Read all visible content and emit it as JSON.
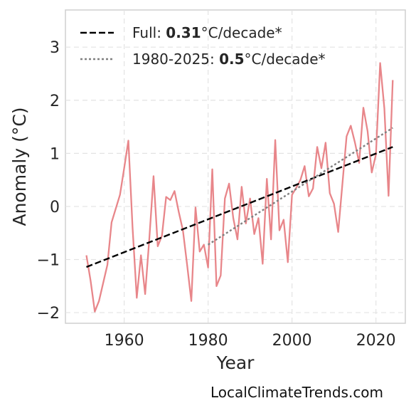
{
  "chart_data": {
    "type": "line",
    "xlabel": "Year",
    "ylabel": "Anomaly (°C)",
    "xlim": [
      1946,
      2027
    ],
    "ylim": [
      -2.2,
      3.7
    ],
    "x_ticks": [
      1960,
      1980,
      2000,
      2020
    ],
    "y_ticks": [
      3,
      2,
      1,
      0,
      -1,
      -2
    ],
    "y_tick_labels": [
      "3",
      "2",
      "1",
      "0",
      "−1",
      "−2"
    ],
    "grid": true,
    "legend_position": "top-left",
    "series": [
      {
        "color": "#e8868a",
        "x": [
          1951,
          1952,
          1953,
          1954,
          1956,
          1957,
          1959,
          1960,
          1961,
          1962,
          1963,
          1964,
          1965,
          1966,
          1967,
          1968,
          1969,
          1970,
          1971,
          1972,
          1973,
          1974,
          1975,
          1976,
          1977,
          1978,
          1979,
          1980,
          1981,
          1982,
          1983,
          1984,
          1985,
          1986,
          1987,
          1988,
          1989,
          1990,
          1991,
          1992,
          1993,
          1994,
          1995,
          1996,
          1997,
          1998,
          1999,
          2000,
          2001,
          2002,
          2003,
          2004,
          2005,
          2006,
          2007,
          2008,
          2009,
          2010,
          2011,
          2012,
          2013,
          2014,
          2015,
          2016,
          2017,
          2018,
          2019,
          2020,
          2021,
          2022,
          2023,
          2024
        ],
        "y": [
          -0.92,
          -1.4,
          -1.98,
          -1.78,
          -1.1,
          -0.3,
          0.22,
          0.72,
          1.24,
          -0.4,
          -1.72,
          -0.92,
          -1.65,
          -0.6,
          0.57,
          -0.75,
          -0.55,
          0.18,
          0.12,
          0.29,
          -0.1,
          -0.45,
          -1.1,
          -1.78,
          -0.02,
          -0.85,
          -0.72,
          -1.15,
          0.7,
          -1.5,
          -1.3,
          0.15,
          0.43,
          -0.22,
          -0.62,
          0.37,
          -0.32,
          0.15,
          -0.52,
          -0.22,
          -1.08,
          0.52,
          -0.62,
          1.25,
          -0.45,
          -0.25,
          -1.05,
          0.22,
          0.35,
          0.5,
          0.76,
          0.19,
          0.34,
          1.12,
          0.72,
          1.2,
          0.25,
          0.05,
          -0.48,
          0.42,
          1.32,
          1.52,
          1.2,
          0.82,
          1.86,
          1.42,
          0.64,
          0.98,
          2.7,
          1.85,
          0.2,
          2.38
        ]
      },
      {
        "name": "Full: 0.31°C/decade*",
        "style": "dashed",
        "color": "#000000",
        "x": [
          1951,
          2024
        ],
        "y": [
          -1.14,
          1.12
        ]
      },
      {
        "name": "1980-2025: 0.5°C/decade*",
        "style": "dotted",
        "color": "#808080",
        "x": [
          1980,
          2024
        ],
        "y": [
          -0.72,
          1.48
        ]
      }
    ],
    "legend": [
      {
        "prefix": "Full: ",
        "value": "0.31",
        "suffix": "°C/decade*",
        "style": "dashed",
        "color": "#000000"
      },
      {
        "prefix": "1980-2025: ",
        "value": "0.5",
        "suffix": "°C/decade*",
        "style": "dotted",
        "color": "#808080"
      }
    ]
  },
  "watermark": "LocalClimateTrends.com"
}
